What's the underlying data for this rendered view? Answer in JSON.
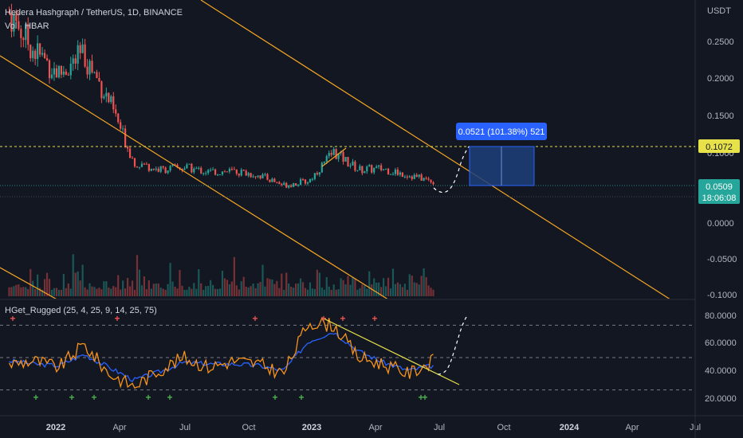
{
  "header": {
    "symbol_line": "Hedera Hashgraph / TetherUS, 1D, BINANCE",
    "volume_label": "Vol · HBAR",
    "indicator_label": "HGet_Rugged (25, 4, 25, 9, 14, 25, 75)"
  },
  "price_axis": {
    "unit": "USDT",
    "ticks": [
      "0.2500",
      "0.2000",
      "0.1500",
      "0.1000",
      "0.0500",
      "0.0000",
      "-0.0500",
      "-0.1000"
    ],
    "target_label": "0.1072",
    "current_label": "0.0509",
    "countdown_label": "18:06:08"
  },
  "indicator_axis": {
    "ticks": [
      "80.0000",
      "60.0000",
      "40.0000",
      "20.0000"
    ]
  },
  "time_axis": {
    "labels": [
      "2022",
      "Apr",
      "Jul",
      "Oct",
      "2023",
      "Apr",
      "Jul",
      "Oct",
      "2024",
      "Apr",
      "Jul"
    ]
  },
  "measure_tooltip": "0.0521 (101.38%) 521",
  "colors": {
    "background": "#131722",
    "up": "#26a69a",
    "down": "#ef5350",
    "channel": "#f5a623",
    "target_line": "#e8e24a",
    "tooltip": "#2962ff",
    "box": "#1e3f7a",
    "rsi_main": "#f7931a",
    "rsi_signal": "#2962ff",
    "plus_green": "#4caf50",
    "plus_red": "#ef5350"
  },
  "chart_data": {
    "type": "line",
    "title": "Hedera Hashgraph / TetherUS, 1D, BINANCE",
    "xlabel": "",
    "ylabel": "USDT",
    "x": [
      "2022-01",
      "2022-02",
      "2022-03",
      "2022-04",
      "2022-05",
      "2022-06",
      "2022-07",
      "2022-08",
      "2022-09",
      "2022-10",
      "2022-11",
      "2022-12",
      "2023-01",
      "2023-02",
      "2023-03",
      "2023-04",
      "2023-05",
      "2023-06"
    ],
    "series": [
      {
        "name": "",
        "values": [
          0.27,
          0.22,
          0.19,
          0.215,
          0.155,
          0.075,
          0.065,
          0.068,
          0.062,
          0.063,
          0.058,
          0.045,
          0.05,
          0.088,
          0.065,
          0.066,
          0.058,
          0.05
        ]
      }
    ],
    "ylim": [
      -0.1,
      0.28
    ],
    "projection": {
      "from": 0.0509,
      "to": 0.1072
    },
    "indicator": {
      "name": "HGet_Rugged (25, 4, 25, 9, 14, 25, 75)",
      "ylim": [
        15,
        85
      ],
      "levels": [
        70,
        50,
        30
      ],
      "x": [
        "2022-01",
        "2022-02",
        "2022-03",
        "2022-04",
        "2022-05",
        "2022-06",
        "2022-07",
        "2022-08",
        "2022-09",
        "2022-10",
        "2022-11",
        "2022-12",
        "2023-01",
        "2023-02",
        "2023-03",
        "2023-04",
        "2023-05",
        "2023-06"
      ],
      "main": [
        46,
        48,
        44,
        58,
        40,
        32,
        42,
        50,
        44,
        48,
        46,
        40,
        72,
        70,
        50,
        46,
        40,
        48
      ],
      "signal": [
        48,
        46,
        45,
        52,
        44,
        36,
        41,
        47,
        46,
        46,
        45,
        42,
        60,
        66,
        54,
        47,
        42,
        45
      ]
    }
  }
}
